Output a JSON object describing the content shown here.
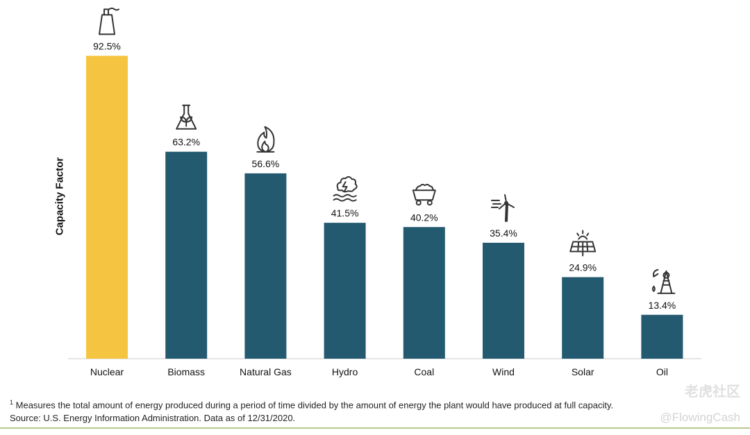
{
  "chart_data": {
    "type": "bar",
    "ylabel": "Capacity Factor",
    "xlabel": "",
    "title": "",
    "categories": [
      "Nuclear",
      "Biomass",
      "Natural Gas",
      "Hydro",
      "Coal",
      "Wind",
      "Solar",
      "Oil"
    ],
    "values": [
      92.5,
      63.2,
      56.6,
      41.5,
      40.2,
      35.4,
      24.9,
      13.4
    ],
    "value_labels": [
      "92.5%",
      "63.2%",
      "56.6%",
      "41.5%",
      "40.2%",
      "35.4%",
      "24.9%",
      "13.4%"
    ],
    "icons": [
      "nuclear-plant-icon",
      "biomass-flask-icon",
      "gas-flame-icon",
      "hydro-wave-icon",
      "coal-cart-icon",
      "wind-turbine-icon",
      "solar-panel-icon",
      "oil-derrick-icon"
    ],
    "colors": [
      "#F5C440",
      "#245A70",
      "#245A70",
      "#245A70",
      "#245A70",
      "#245A70",
      "#245A70",
      "#245A70"
    ],
    "ylim": [
      0,
      100
    ],
    "grid": false,
    "legend": "none"
  },
  "footnote": {
    "marker": "1",
    "line1": "Measures the total amount of energy produced during a period of time divided by the amount of energy the plant would have produced at full capacity.",
    "line2": "Source: U.S. Energy Information Administration. Data as of 12/31/2020."
  },
  "watermark": {
    "community": "老虎社区",
    "handle": "@FlowingCash"
  },
  "colors": {
    "accent": "#F5C440",
    "bar": "#245A70",
    "rule": "#B9C78E"
  }
}
